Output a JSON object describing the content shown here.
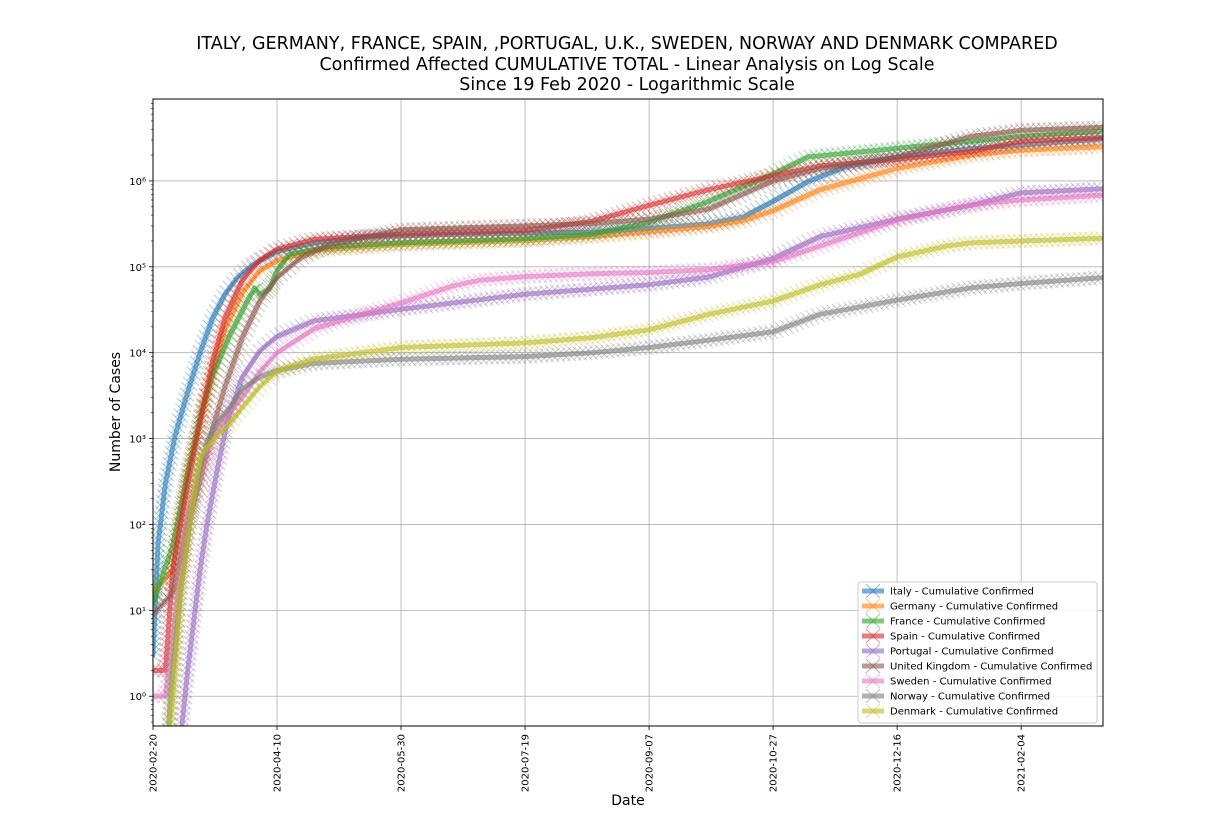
{
  "chart_data": {
    "type": "line",
    "title_lines": [
      "ITALY, GERMANY, FRANCE, SPAIN, ,PORTUGAL, U.K., SWEDEN, NORWAY AND DENMARK COMPARED",
      "Confirmed Affected CUMULATIVE TOTAL - Linear Analysis on Log Scale",
      "Since 19 Feb 2020 - Logarithmic Scale"
    ],
    "xlabel": "Date",
    "ylabel": "Number of Cases",
    "yscale": "log",
    "xlim": [
      "2020-02-20",
      "2021-03-09"
    ],
    "ylim": [
      0.45,
      9000000
    ],
    "x_ticks": [
      "2020-02-20",
      "2020-04-10",
      "2020-05-30",
      "2020-07-19",
      "2020-09-07",
      "2020-10-27",
      "2020-12-16",
      "2021-02-04"
    ],
    "y_ticks": [
      {
        "value": 1,
        "label": "10⁰"
      },
      {
        "value": 10,
        "label": "10¹"
      },
      {
        "value": 100,
        "label": "10²"
      },
      {
        "value": 1000,
        "label": "10³"
      },
      {
        "value": 10000,
        "label": "10⁴"
      },
      {
        "value": 100000,
        "label": "10⁵"
      },
      {
        "value": 1000000,
        "label": "10⁶"
      }
    ],
    "grid": true,
    "legend_position": "lower right",
    "marker": "x",
    "series": [
      {
        "name": "Italy - Cumulative Confirmed",
        "color": "#1f77b4",
        "points": [
          [
            "2020-02-20",
            3
          ],
          [
            "2020-02-22",
            60
          ],
          [
            "2020-02-25",
            300
          ],
          [
            "2020-02-29",
            1100
          ],
          [
            "2020-03-05",
            3500
          ],
          [
            "2020-03-10",
            10000
          ],
          [
            "2020-03-15",
            25000
          ],
          [
            "2020-03-20",
            48000
          ],
          [
            "2020-03-25",
            75000
          ],
          [
            "2020-03-31",
            105000
          ],
          [
            "2020-04-10",
            150000
          ],
          [
            "2020-04-25",
            190000
          ],
          [
            "2020-05-15",
            222000
          ],
          [
            "2020-06-15",
            237000
          ],
          [
            "2020-07-15",
            245000
          ],
          [
            "2020-08-15",
            253000
          ],
          [
            "2020-09-07",
            280000
          ],
          [
            "2020-09-30",
            315000
          ],
          [
            "2020-10-15",
            380000
          ],
          [
            "2020-10-27",
            580000
          ],
          [
            "2020-11-10",
            980000
          ],
          [
            "2020-11-25",
            1450000
          ],
          [
            "2020-12-16",
            1900000
          ],
          [
            "2021-01-15",
            2380000
          ],
          [
            "2021-02-04",
            2600000
          ],
          [
            "2021-03-09",
            3100000
          ]
        ]
      },
      {
        "name": "Germany - Cumulative Confirmed",
        "color": "#ff7f0e",
        "points": [
          [
            "2020-02-20",
            16
          ],
          [
            "2020-02-28",
            30
          ],
          [
            "2020-03-05",
            400
          ],
          [
            "2020-03-10",
            1500
          ],
          [
            "2020-03-15",
            6000
          ],
          [
            "2020-03-20",
            19000
          ],
          [
            "2020-03-27",
            50000
          ],
          [
            "2020-04-03",
            90000
          ],
          [
            "2020-04-10",
            118000
          ],
          [
            "2020-04-25",
            155000
          ],
          [
            "2020-05-30",
            182000
          ],
          [
            "2020-07-19",
            202000
          ],
          [
            "2020-08-15",
            225000
          ],
          [
            "2020-09-07",
            255000
          ],
          [
            "2020-10-01",
            295000
          ],
          [
            "2020-10-15",
            345000
          ],
          [
            "2020-10-27",
            450000
          ],
          [
            "2020-11-15",
            790000
          ],
          [
            "2020-12-16",
            1400000
          ],
          [
            "2021-01-15",
            2000000
          ],
          [
            "2021-02-04",
            2280000
          ],
          [
            "2021-03-09",
            2500000
          ]
        ]
      },
      {
        "name": "France - Cumulative Confirmed",
        "color": "#2ca02c",
        "points": [
          [
            "2020-02-20",
            12
          ],
          [
            "2020-02-28",
            57
          ],
          [
            "2020-03-05",
            400
          ],
          [
            "2020-03-10",
            1800
          ],
          [
            "2020-03-15",
            5400
          ],
          [
            "2020-03-22",
            16000
          ],
          [
            "2020-03-29",
            40000
          ],
          [
            "2020-04-01",
            57000
          ],
          [
            "2020-04-03",
            48000
          ],
          [
            "2020-04-07",
            55000
          ],
          [
            "2020-04-10",
            90000
          ],
          [
            "2020-04-15",
            140000
          ],
          [
            "2020-05-01",
            170000
          ],
          [
            "2020-05-30",
            190000
          ],
          [
            "2020-07-19",
            212000
          ],
          [
            "2020-08-15",
            240000
          ],
          [
            "2020-09-07",
            330000
          ],
          [
            "2020-10-01",
            580000
          ],
          [
            "2020-10-27",
            1200000
          ],
          [
            "2020-11-10",
            1900000
          ],
          [
            "2020-12-16",
            2400000
          ],
          [
            "2021-01-15",
            2900000
          ],
          [
            "2021-02-04",
            3300000
          ],
          [
            "2021-03-09",
            3800000
          ]
        ]
      },
      {
        "name": "Spain - Cumulative Confirmed",
        "color": "#d62728",
        "points": [
          [
            "2020-02-20",
            2
          ],
          [
            "2020-02-25",
            2
          ],
          [
            "2020-02-28",
            30
          ],
          [
            "2020-03-05",
            300
          ],
          [
            "2020-03-10",
            1600
          ],
          [
            "2020-03-15",
            7800
          ],
          [
            "2020-03-20",
            25000
          ],
          [
            "2020-03-27",
            70000
          ],
          [
            "2020-04-03",
            120000
          ],
          [
            "2020-04-10",
            160000
          ],
          [
            "2020-04-25",
            210000
          ],
          [
            "2020-05-30",
            240000
          ],
          [
            "2020-07-19",
            265000
          ],
          [
            "2020-08-15",
            340000
          ],
          [
            "2020-09-07",
            520000
          ],
          [
            "2020-10-01",
            790000
          ],
          [
            "2020-10-27",
            1150000
          ],
          [
            "2020-11-15",
            1500000
          ],
          [
            "2020-12-16",
            1780000
          ],
          [
            "2021-01-15",
            2200000
          ],
          [
            "2021-02-04",
            2900000
          ],
          [
            "2021-03-09",
            3200000
          ]
        ]
      },
      {
        "name": "Portugal - Cumulative Confirmed",
        "color": "#9467bd",
        "points": [
          [
            "2020-03-02",
            0.3
          ],
          [
            "2020-03-05",
            2
          ],
          [
            "2020-03-10",
            30
          ],
          [
            "2020-03-13",
            110
          ],
          [
            "2020-03-17",
            450
          ],
          [
            "2020-03-21",
            1600
          ],
          [
            "2020-03-27",
            5200
          ],
          [
            "2020-04-03",
            10500
          ],
          [
            "2020-04-10",
            15500
          ],
          [
            "2020-04-25",
            23500
          ],
          [
            "2020-05-30",
            32000
          ],
          [
            "2020-07-19",
            48000
          ],
          [
            "2020-08-15",
            55000
          ],
          [
            "2020-09-07",
            62000
          ],
          [
            "2020-10-01",
            76000
          ],
          [
            "2020-10-27",
            125000
          ],
          [
            "2020-11-15",
            225000
          ],
          [
            "2020-12-16",
            360000
          ],
          [
            "2021-01-15",
            520000
          ],
          [
            "2021-02-04",
            730000
          ],
          [
            "2021-03-09",
            810000
          ]
        ]
      },
      {
        "name": "United Kingdom - Cumulative Confirmed",
        "color": "#8c564b",
        "points": [
          [
            "2020-02-20",
            9
          ],
          [
            "2020-02-28",
            16
          ],
          [
            "2020-03-05",
            100
          ],
          [
            "2020-03-10",
            320
          ],
          [
            "2020-03-15",
            1300
          ],
          [
            "2020-03-20",
            4000
          ],
          [
            "2020-03-27",
            15000
          ],
          [
            "2020-04-03",
            40000
          ],
          [
            "2020-04-10",
            75000
          ],
          [
            "2020-04-20",
            130000
          ],
          [
            "2020-05-01",
            180000
          ],
          [
            "2020-05-30",
            270000
          ],
          [
            "2020-07-19",
            300000
          ],
          [
            "2020-08-15",
            320000
          ],
          [
            "2020-09-07",
            360000
          ],
          [
            "2020-10-01",
            470000
          ],
          [
            "2020-10-27",
            1000000
          ],
          [
            "2020-11-15",
            1400000
          ],
          [
            "2020-12-16",
            1900000
          ],
          [
            "2021-01-15",
            3300000
          ],
          [
            "2021-02-04",
            3900000
          ],
          [
            "2021-03-09",
            4200000
          ]
        ]
      },
      {
        "name": "Sweden - Cumulative Confirmed",
        "color": "#e377c2",
        "points": [
          [
            "2020-02-20",
            1
          ],
          [
            "2020-02-25",
            1
          ],
          [
            "2020-03-01",
            14
          ],
          [
            "2020-03-05",
            120
          ],
          [
            "2020-03-10",
            350
          ],
          [
            "2020-03-15",
            1000
          ],
          [
            "2020-03-20",
            1700
          ],
          [
            "2020-03-27",
            3000
          ],
          [
            "2020-04-03",
            6000
          ],
          [
            "2020-04-10",
            10000
          ],
          [
            "2020-04-25",
            19000
          ],
          [
            "2020-05-30",
            38000
          ],
          [
            "2020-06-20",
            60000
          ],
          [
            "2020-07-01",
            70000
          ],
          [
            "2020-07-19",
            77000
          ],
          [
            "2020-08-15",
            83000
          ],
          [
            "2020-09-07",
            86000
          ],
          [
            "2020-10-01",
            93000
          ],
          [
            "2020-10-27",
            115000
          ],
          [
            "2020-11-15",
            175000
          ],
          [
            "2020-12-16",
            350000
          ],
          [
            "2021-01-15",
            530000
          ],
          [
            "2021-02-04",
            600000
          ],
          [
            "2021-03-09",
            680000
          ]
        ]
      },
      {
        "name": "Norway - Cumulative Confirmed",
        "color": "#7f7f7f",
        "points": [
          [
            "2020-02-26",
            0.3
          ],
          [
            "2020-02-27",
            1
          ],
          [
            "2020-03-02",
            15
          ],
          [
            "2020-03-06",
            110
          ],
          [
            "2020-03-10",
            450
          ],
          [
            "2020-03-13",
            950
          ],
          [
            "2020-03-17",
            1550
          ],
          [
            "2020-03-22",
            2300
          ],
          [
            "2020-03-27",
            3800
          ],
          [
            "2020-04-03",
            5200
          ],
          [
            "2020-04-10",
            6200
          ],
          [
            "2020-04-25",
            7500
          ],
          [
            "2020-05-30",
            8400
          ],
          [
            "2020-07-19",
            9000
          ],
          [
            "2020-08-15",
            10000
          ],
          [
            "2020-09-07",
            11500
          ],
          [
            "2020-10-01",
            14000
          ],
          [
            "2020-10-27",
            17500
          ],
          [
            "2020-11-15",
            28000
          ],
          [
            "2020-12-16",
            41000
          ],
          [
            "2021-01-15",
            57000
          ],
          [
            "2021-02-04",
            64000
          ],
          [
            "2021-03-09",
            75000
          ]
        ]
      },
      {
        "name": "Denmark - Cumulative Confirmed",
        "color": "#bcbd22",
        "points": [
          [
            "2020-02-26",
            0.3
          ],
          [
            "2020-02-28",
            1
          ],
          [
            "2020-03-02",
            15
          ],
          [
            "2020-03-06",
            110
          ],
          [
            "2020-03-10",
            600
          ],
          [
            "2020-03-13",
            800
          ],
          [
            "2020-03-17",
            1100
          ],
          [
            "2020-03-22",
            1500
          ],
          [
            "2020-03-27",
            2300
          ],
          [
            "2020-04-03",
            4000
          ],
          [
            "2020-04-10",
            6100
          ],
          [
            "2020-04-25",
            8500
          ],
          [
            "2020-05-30",
            11500
          ],
          [
            "2020-07-19",
            13000
          ],
          [
            "2020-08-15",
            15000
          ],
          [
            "2020-09-07",
            18500
          ],
          [
            "2020-10-01",
            28000
          ],
          [
            "2020-10-27",
            40000
          ],
          [
            "2020-11-15",
            62000
          ],
          [
            "2020-12-01",
            82000
          ],
          [
            "2020-12-16",
            130000
          ],
          [
            "2021-01-05",
            175000
          ],
          [
            "2021-01-15",
            190000
          ],
          [
            "2021-02-04",
            200000
          ],
          [
            "2021-03-09",
            215000
          ]
        ]
      }
    ]
  }
}
